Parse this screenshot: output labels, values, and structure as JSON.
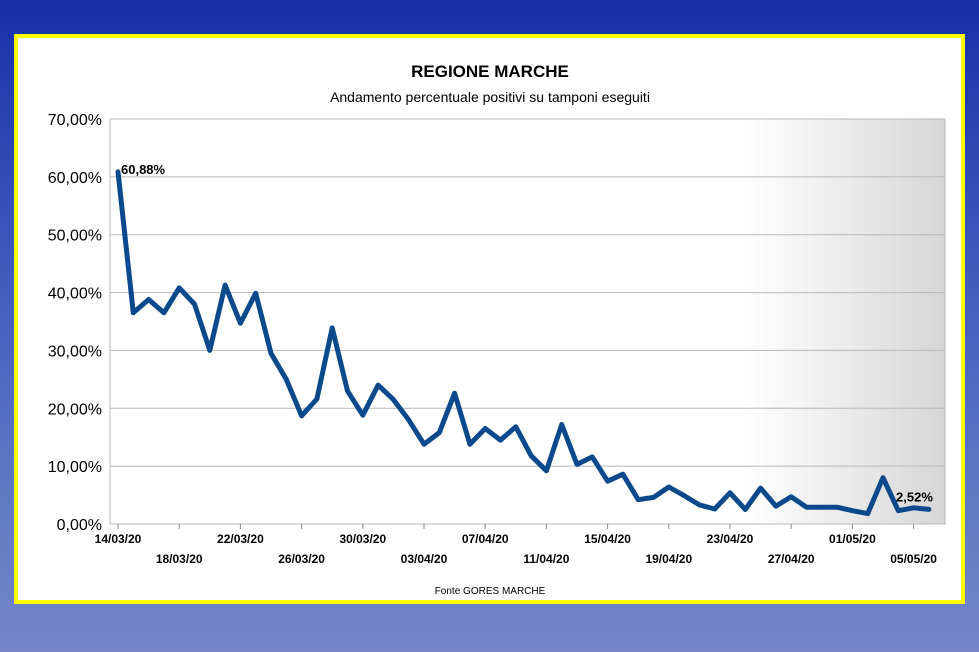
{
  "chart_data": {
    "type": "line",
    "title": "REGIONE MARCHE",
    "subtitle": "Andamento percentuale positivi su tamponi eseguiti",
    "source": "Fonte GORES MARCHE",
    "ylim": [
      0,
      70
    ],
    "yticks": [
      0,
      10,
      20,
      30,
      40,
      50,
      60,
      70
    ],
    "ytick_labels": [
      "0,00%",
      "10,00%",
      "20,00%",
      "30,00%",
      "40,00%",
      "50,00%",
      "60,00%",
      "70,00%"
    ],
    "grid": true,
    "x": [
      "14/03/20",
      "15/03/20",
      "16/03/20",
      "17/03/20",
      "18/03/20",
      "19/03/20",
      "20/03/20",
      "21/03/20",
      "22/03/20",
      "23/03/20",
      "24/03/20",
      "25/03/20",
      "26/03/20",
      "27/03/20",
      "28/03/20",
      "29/03/20",
      "30/03/20",
      "31/03/20",
      "01/04/20",
      "02/04/20",
      "03/04/20",
      "04/04/20",
      "05/04/20",
      "06/04/20",
      "07/04/20",
      "08/04/20",
      "09/04/20",
      "10/04/20",
      "11/04/20",
      "12/04/20",
      "13/04/20",
      "14/04/20",
      "15/04/20",
      "16/04/20",
      "17/04/20",
      "18/04/20",
      "19/04/20",
      "20/04/20",
      "21/04/20",
      "22/04/20",
      "23/04/20",
      "24/04/20",
      "25/04/20",
      "26/04/20",
      "27/04/20",
      "28/04/20",
      "29/04/20",
      "30/04/20",
      "01/05/20",
      "02/05/20",
      "03/05/20",
      "04/05/20",
      "05/05/20",
      "06/05/20"
    ],
    "series": [
      {
        "values": [
          60.88,
          36.5,
          38.8,
          36.5,
          40.8,
          38.0,
          30.0,
          41.3,
          34.7,
          39.9,
          29.5,
          25.0,
          18.7,
          21.6,
          33.9,
          23.0,
          18.8,
          24.0,
          21.5,
          18.0,
          13.8,
          15.8,
          22.6,
          13.8,
          16.5,
          14.5,
          16.8,
          11.8,
          9.2,
          17.2,
          10.3,
          11.6,
          7.4,
          8.6,
          4.2,
          4.6,
          6.4,
          4.9,
          3.3,
          2.6,
          5.4,
          2.5,
          6.2,
          3.1,
          4.7,
          2.9,
          2.9,
          2.9,
          2.3,
          1.8,
          8.0,
          2.3,
          2.8,
          2.52
        ],
        "color": "#0a4a8c"
      }
    ],
    "xtick_labels_row1": [
      "14/03/20",
      "22/03/20",
      "30/03/20",
      "07/04/20",
      "15/04/20",
      "23/04/20",
      "01/05/20"
    ],
    "xtick_labels_row2": [
      "18/03/20",
      "26/03/20",
      "03/04/20",
      "11/04/20",
      "19/04/20",
      "27/04/20",
      "05/05/20"
    ],
    "data_labels": [
      {
        "x": "14/03/20",
        "text": "60,88%"
      },
      {
        "x": "06/05/20",
        "text": "2,52%"
      }
    ]
  }
}
